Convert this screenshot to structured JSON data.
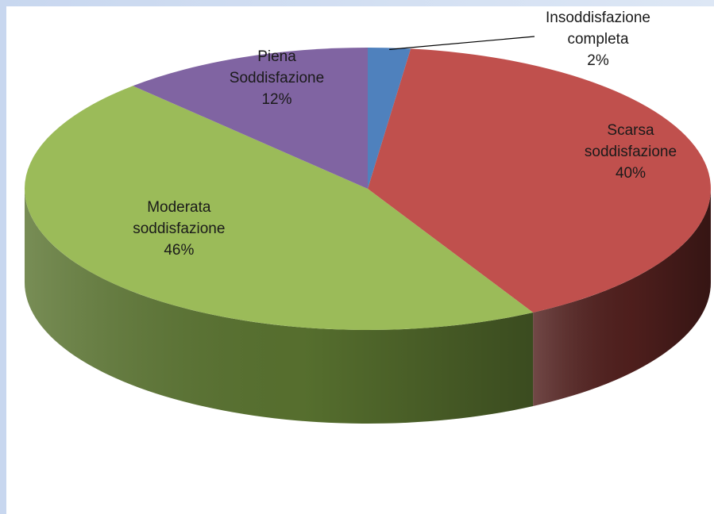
{
  "chart_data": {
    "type": "pie",
    "style": "3d",
    "start_angle_deg": -90,
    "direction": "clockwise",
    "slices": [
      {
        "name_lines": [
          "Insoddisfazione",
          "completa"
        ],
        "value": 2,
        "label": "2%",
        "color": "#4f81bd",
        "side_color": "#2c4a70"
      },
      {
        "name_lines": [
          "Scarsa",
          "soddisfazione"
        ],
        "value": 40,
        "label": "40%",
        "color": "#c0504d",
        "side_color": "#52201e"
      },
      {
        "name_lines": [
          "Moderata",
          "soddisfazione"
        ],
        "value": 46,
        "label": "46%",
        "color": "#9bbb59",
        "side_color": "#5a7430"
      },
      {
        "name_lines": [
          "Piena",
          "Soddisfazione"
        ],
        "value": 12,
        "label": "12%",
        "color": "#8064a2",
        "side_color": "#4a3a60"
      }
    ],
    "title": "",
    "legend": "none"
  },
  "colors": {
    "frame": "#c8d7ef",
    "plot_background": "#ffffff",
    "leader_line": "#000000"
  }
}
